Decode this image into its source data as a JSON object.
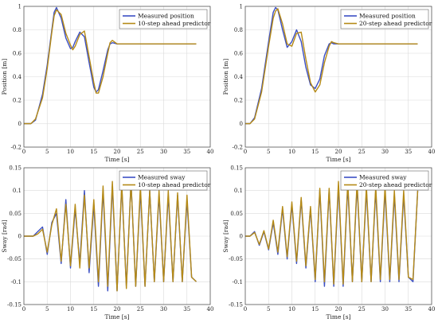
{
  "colors": {
    "measured": "#3b4fc4",
    "predictor": "#b58a16",
    "grid": "#d9d9d9"
  },
  "chart_data": [
    {
      "type": "line",
      "xlabel": "Time [s]",
      "ylabel": "Position [m]",
      "xlim": [
        0,
        40
      ],
      "ylim": [
        -0.2,
        1.0
      ],
      "xticks": [
        "0",
        "5",
        "10",
        "15",
        "20",
        "25",
        "30",
        "35",
        "40"
      ],
      "yticks": [
        "-0.2",
        "0",
        "0.2",
        "0.4",
        "0.6",
        "0.8",
        "1"
      ],
      "grid": true,
      "legend": "top-right",
      "series": [
        {
          "name": "Measured position",
          "color": "#3b4fc4",
          "x": [
            0,
            1.5,
            2.5,
            4,
            5,
            6,
            6.5,
            7,
            8,
            9,
            10,
            10.5,
            11,
            12,
            13,
            14,
            15,
            15.5,
            16,
            17,
            18,
            18.5,
            19,
            20,
            25,
            30,
            37
          ],
          "y": [
            0,
            0,
            0.03,
            0.25,
            0.5,
            0.8,
            0.95,
            0.99,
            0.9,
            0.73,
            0.64,
            0.65,
            0.7,
            0.78,
            0.74,
            0.52,
            0.31,
            0.27,
            0.29,
            0.45,
            0.63,
            0.68,
            0.69,
            0.68,
            0.68,
            0.68,
            0.68
          ]
        },
        {
          "name": "10-step ahead predictor",
          "color": "#b58a16",
          "x": [
            0,
            1.5,
            2.5,
            4,
            5,
            6,
            6.5,
            7,
            8,
            9,
            10,
            10.5,
            11,
            12,
            13,
            14,
            15,
            15.5,
            16,
            17,
            18,
            18.5,
            19,
            20,
            25,
            30,
            37
          ],
          "y": [
            0,
            0,
            0.04,
            0.22,
            0.47,
            0.78,
            0.92,
            0.97,
            0.93,
            0.77,
            0.67,
            0.63,
            0.66,
            0.76,
            0.79,
            0.57,
            0.35,
            0.26,
            0.26,
            0.4,
            0.6,
            0.69,
            0.71,
            0.68,
            0.68,
            0.68,
            0.68
          ]
        }
      ]
    },
    {
      "type": "line",
      "xlabel": "Time [s]",
      "ylabel": "Position [m]",
      "xlim": [
        0,
        40
      ],
      "ylim": [
        -0.2,
        1.0
      ],
      "xticks": [
        "0",
        "5",
        "10",
        "15",
        "20",
        "25",
        "30",
        "35",
        "40"
      ],
      "yticks": [
        "-0.2",
        "0",
        "0.2",
        "0.4",
        "0.6",
        "0.8",
        "1"
      ],
      "grid": true,
      "legend": "top-right",
      "series": [
        {
          "name": "Measured position",
          "color": "#3b4fc4",
          "x": [
            0,
            1,
            2,
            3.5,
            5,
            6,
            6.5,
            7,
            8,
            9,
            10,
            11,
            12,
            13,
            14,
            15,
            16,
            17,
            18,
            18.5,
            19,
            20,
            25,
            30,
            37
          ],
          "y": [
            0,
            0,
            0.05,
            0.3,
            0.7,
            0.95,
            0.99,
            0.97,
            0.8,
            0.65,
            0.7,
            0.8,
            0.7,
            0.48,
            0.33,
            0.3,
            0.38,
            0.58,
            0.68,
            0.69,
            0.68,
            0.68,
            0.68,
            0.68,
            0.68
          ]
        },
        {
          "name": "20-step ahead predictor",
          "color": "#b58a16",
          "x": [
            0,
            1,
            2,
            3.5,
            5,
            6,
            6.5,
            7,
            8,
            9,
            10,
            11,
            12,
            13,
            14,
            15,
            16,
            17,
            18,
            18.5,
            19,
            20,
            25,
            30,
            37
          ],
          "y": [
            0,
            0,
            0.04,
            0.27,
            0.66,
            0.9,
            0.96,
            0.98,
            0.85,
            0.68,
            0.66,
            0.77,
            0.78,
            0.55,
            0.35,
            0.27,
            0.33,
            0.52,
            0.66,
            0.7,
            0.69,
            0.68,
            0.68,
            0.68,
            0.68
          ]
        }
      ]
    },
    {
      "type": "line",
      "xlabel": "Time [s]",
      "ylabel": "Sway [rad]",
      "xlim": [
        0,
        40
      ],
      "ylim": [
        -0.15,
        0.15
      ],
      "xticks": [
        "0",
        "5",
        "10",
        "15",
        "20",
        "25",
        "30",
        "35",
        "40"
      ],
      "yticks": [
        "-0.15",
        "-0.1",
        "-0.05",
        "0",
        "0.05",
        "0.1",
        "0.15"
      ],
      "grid": true,
      "legend": "top-right",
      "series": [
        {
          "name": "Measured sway",
          "color": "#3b4fc4",
          "x": [
            0,
            2,
            3,
            4,
            5,
            6,
            7,
            8,
            9,
            10,
            11,
            12,
            13,
            14,
            15,
            16,
            17,
            18,
            19,
            20,
            21,
            22,
            23,
            24,
            25,
            26,
            27,
            28,
            29,
            30,
            31,
            32,
            33,
            34,
            35,
            36,
            37
          ],
          "y": [
            0,
            0,
            0.01,
            0.02,
            -0.04,
            0.03,
            0.05,
            -0.06,
            0.08,
            -0.07,
            0.06,
            -0.06,
            0.1,
            -0.08,
            0.07,
            -0.11,
            0.1,
            -0.12,
            0.11,
            -0.12,
            0.11,
            -0.11,
            0.12,
            -0.11,
            0.1,
            -0.11,
            0.1,
            -0.1,
            0.09,
            -0.1,
            0.09,
            -0.1,
            0.09,
            -0.1,
            0.08,
            -0.09,
            -0.1
          ]
        },
        {
          "name": "10-step ahead predictor",
          "color": "#b58a16",
          "x": [
            0,
            2,
            3,
            4,
            5,
            6,
            7,
            8,
            9,
            10,
            11,
            12,
            13,
            14,
            15,
            16,
            17,
            18,
            19,
            20,
            21,
            22,
            23,
            24,
            25,
            26,
            27,
            28,
            29,
            30,
            31,
            32,
            33,
            34,
            35,
            36,
            37
          ],
          "y": [
            0,
            0,
            0.005,
            0.015,
            -0.035,
            0.025,
            0.06,
            -0.055,
            0.07,
            -0.065,
            0.07,
            -0.07,
            0.09,
            -0.07,
            0.08,
            -0.1,
            0.11,
            -0.11,
            0.12,
            -0.12,
            0.115,
            -0.115,
            0.12,
            -0.11,
            0.11,
            -0.11,
            0.1,
            -0.1,
            0.1,
            -0.1,
            0.1,
            -0.1,
            0.095,
            -0.1,
            0.09,
            -0.09,
            -0.1
          ]
        }
      ]
    },
    {
      "type": "line",
      "xlabel": "Time [s]",
      "ylabel": "Sway [rad]",
      "xlim": [
        0,
        40
      ],
      "ylim": [
        -0.15,
        0.15
      ],
      "xticks": [
        "0",
        "5",
        "10",
        "15",
        "20",
        "25",
        "30",
        "35",
        "40"
      ],
      "yticks": [
        "-0.15",
        "-0.1",
        "-0.05",
        "0",
        "0.05",
        "0.1",
        "0.15"
      ],
      "grid": true,
      "legend": "top-right",
      "series": [
        {
          "name": "Measured sway",
          "color": "#3b4fc4",
          "x": [
            0,
            1,
            2,
            3,
            4,
            5,
            6,
            7,
            8,
            9,
            10,
            11,
            12,
            13,
            14,
            15,
            16,
            17,
            18,
            19,
            20,
            21,
            22,
            23,
            24,
            25,
            26,
            27,
            28,
            29,
            30,
            31,
            32,
            33,
            34,
            35,
            36,
            37
          ],
          "y": [
            0,
            0,
            0.01,
            -0.02,
            0.01,
            -0.03,
            0.03,
            -0.04,
            0.06,
            -0.05,
            0.07,
            -0.06,
            0.08,
            -0.07,
            0.06,
            -0.1,
            0.1,
            -0.11,
            0.1,
            -0.11,
            0.11,
            -0.11,
            0.11,
            -0.1,
            0.11,
            -0.1,
            0.1,
            -0.1,
            0.1,
            -0.1,
            0.1,
            -0.1,
            0.09,
            -0.1,
            0.09,
            -0.09,
            -0.1,
            0.1
          ]
        },
        {
          "name": "20-step ahead predictor",
          "color": "#b58a16",
          "x": [
            0,
            1,
            2,
            3,
            4,
            5,
            6,
            7,
            8,
            9,
            10,
            11,
            12,
            13,
            14,
            15,
            16,
            17,
            18,
            19,
            20,
            21,
            22,
            23,
            24,
            25,
            26,
            27,
            28,
            29,
            30,
            31,
            32,
            33,
            34,
            35,
            36,
            37
          ],
          "y": [
            0,
            0,
            0.008,
            -0.018,
            0.012,
            -0.028,
            0.035,
            -0.035,
            0.065,
            -0.045,
            0.075,
            -0.055,
            0.085,
            -0.065,
            0.065,
            -0.095,
            0.105,
            -0.1,
            0.105,
            -0.105,
            0.12,
            -0.105,
            0.12,
            -0.1,
            0.12,
            -0.1,
            0.11,
            -0.1,
            0.11,
            -0.095,
            0.11,
            -0.095,
            0.1,
            -0.095,
            0.1,
            -0.09,
            -0.095,
            0.1
          ]
        }
      ]
    }
  ]
}
